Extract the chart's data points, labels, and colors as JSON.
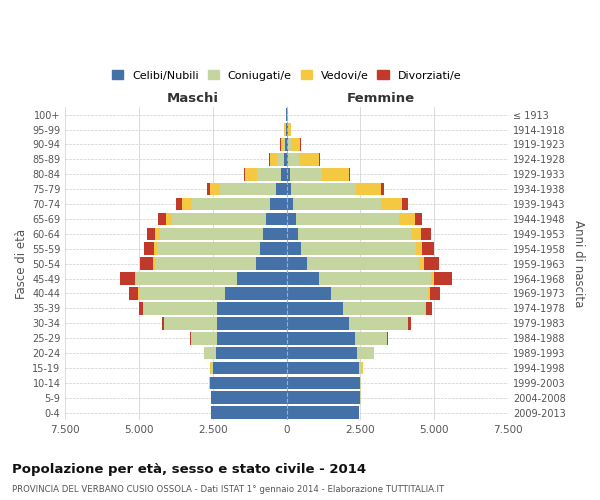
{
  "age_groups": [
    "0-4",
    "5-9",
    "10-14",
    "15-19",
    "20-24",
    "25-29",
    "30-34",
    "35-39",
    "40-44",
    "45-49",
    "50-54",
    "55-59",
    "60-64",
    "65-69",
    "70-74",
    "75-79",
    "80-84",
    "85-89",
    "90-94",
    "95-99",
    "100+"
  ],
  "birth_years": [
    "2009-2013",
    "2004-2008",
    "1999-2003",
    "1994-1998",
    "1989-1993",
    "1984-1988",
    "1979-1983",
    "1974-1978",
    "1969-1973",
    "1964-1968",
    "1959-1963",
    "1954-1958",
    "1949-1953",
    "1944-1948",
    "1939-1943",
    "1934-1938",
    "1929-1933",
    "1924-1928",
    "1919-1923",
    "1914-1918",
    "≤ 1913"
  ],
  "males": {
    "celibi": [
      2550,
      2550,
      2600,
      2500,
      2400,
      2350,
      2350,
      2350,
      2100,
      1700,
      1050,
      900,
      800,
      700,
      550,
      350,
      200,
      80,
      60,
      30,
      10
    ],
    "coniugati": [
      10,
      10,
      20,
      80,
      400,
      900,
      1800,
      2500,
      2900,
      3400,
      3400,
      3500,
      3500,
      3200,
      2700,
      1900,
      800,
      250,
      80,
      30,
      10
    ],
    "vedovi": [
      1,
      1,
      1,
      2,
      5,
      5,
      10,
      15,
      30,
      50,
      80,
      100,
      150,
      200,
      300,
      350,
      400,
      250,
      60,
      20,
      5
    ],
    "divorziati": [
      2,
      2,
      2,
      5,
      10,
      30,
      80,
      150,
      300,
      500,
      450,
      350,
      300,
      250,
      200,
      100,
      50,
      20,
      10,
      5,
      2
    ]
  },
  "females": {
    "nubili": [
      2450,
      2500,
      2500,
      2450,
      2400,
      2300,
      2100,
      1900,
      1500,
      1100,
      700,
      500,
      400,
      300,
      200,
      150,
      100,
      60,
      60,
      30,
      10
    ],
    "coniugate": [
      10,
      15,
      30,
      120,
      550,
      1100,
      2000,
      2800,
      3300,
      3800,
      3800,
      3900,
      3800,
      3500,
      3000,
      2200,
      1100,
      350,
      100,
      30,
      10
    ],
    "vedove": [
      2,
      2,
      2,
      3,
      5,
      10,
      20,
      30,
      60,
      100,
      150,
      200,
      350,
      550,
      700,
      850,
      900,
      700,
      300,
      80,
      15
    ],
    "divorziate": [
      2,
      2,
      2,
      5,
      10,
      30,
      80,
      200,
      350,
      600,
      500,
      400,
      350,
      250,
      200,
      100,
      40,
      20,
      10,
      5,
      2
    ]
  },
  "colors": {
    "celibi": "#4472a8",
    "coniugati": "#c5d5a0",
    "vedovi": "#f5c842",
    "divorziati": "#c0392b"
  },
  "xlim": 7500,
  "title": "Popolazione per età, sesso e stato civile - 2014",
  "subtitle": "PROVINCIA DEL VERBANO CUSIO OSSOLA - Dati ISTAT 1° gennaio 2014 - Elaborazione TUTTITALIA.IT",
  "ylabel_left": "Fasce di età",
  "ylabel_right": "Anni di nascita",
  "legend_labels": [
    "Celibi/Nubili",
    "Coniugati/e",
    "Vedovi/e",
    "Divorziati/e"
  ],
  "maschi_label": "Maschi",
  "femmine_label": "Femmine"
}
